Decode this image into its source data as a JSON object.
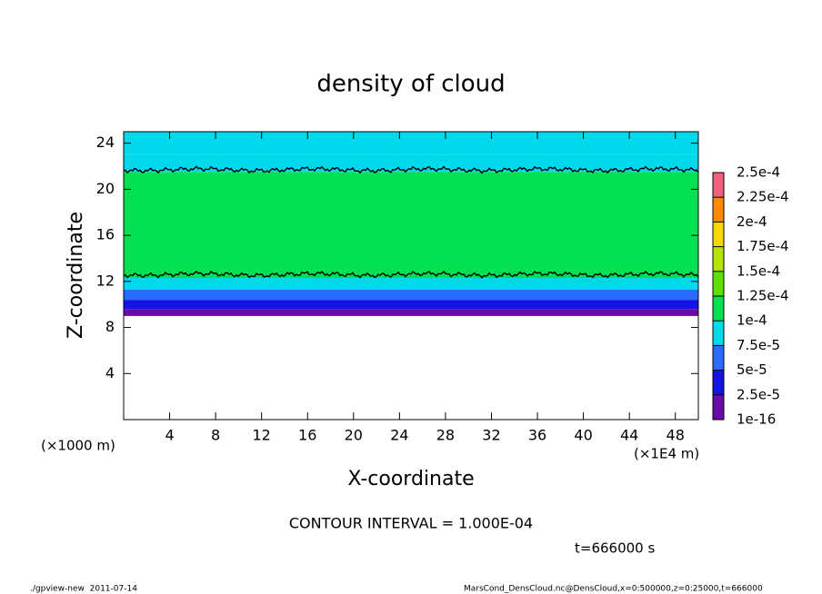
{
  "chart_data": {
    "type": "layered-contour",
    "title": "density of cloud",
    "x_label": "X-coordinate",
    "y_label": "Z-coordinate",
    "x_unit": "(×1E4 m)",
    "y_unit": "(×1000 m)",
    "contour_note": "CONTOUR INTERVAL = 1.000E-04",
    "time_note": "t=666000 s",
    "footer_left": "./gpview-new  2011-07-14",
    "footer_right": "MarsCond_DensCloud.nc@DensCloud,x=0:500000,z=0:25000,t=666000",
    "xlim": [
      0,
      50
    ],
    "ylim": [
      0,
      25
    ],
    "xticks": [
      4,
      8,
      12,
      16,
      20,
      24,
      28,
      32,
      36,
      40,
      44,
      48
    ],
    "yticks": [
      4,
      8,
      12,
      16,
      20,
      24
    ],
    "layers": [
      {
        "zlim": [
          0,
          9
        ],
        "value": 0
      },
      {
        "zlim": [
          9,
          9.6
        ],
        "value": 1e-05
      },
      {
        "zlim": [
          9.6,
          10.4
        ],
        "value": 3.5e-05
      },
      {
        "zlim": [
          10.4,
          11.3
        ],
        "value": 6e-05
      },
      {
        "zlim": [
          11.3,
          12.3
        ],
        "value": 8.5e-05
      },
      {
        "zlim": [
          12.3,
          21.5
        ],
        "value": 0.00011
      },
      {
        "zlim": [
          21.5,
          23
        ],
        "value": 9e-05
      },
      {
        "zlim": [
          23,
          25
        ],
        "value": 8e-05
      }
    ],
    "contours": [
      12.6,
      21.7
    ],
    "colorbar": {
      "levels": [
        {
          "value": 1e-16,
          "label": "1e-16"
        },
        {
          "value": 2.5e-05,
          "label": "2.5e-5"
        },
        {
          "value": 5e-05,
          "label": "5e-5"
        },
        {
          "value": 7.5e-05,
          "label": "7.5e-5"
        },
        {
          "value": 0.0001,
          "label": "1e-4"
        },
        {
          "value": 0.000125,
          "label": "1.25e-4"
        },
        {
          "value": 0.00015,
          "label": "1.5e-4"
        },
        {
          "value": 0.000175,
          "label": "1.75e-4"
        },
        {
          "value": 0.0002,
          "label": "2e-4"
        },
        {
          "value": 0.000225,
          "label": "2.25e-4"
        },
        {
          "value": 0.00025,
          "label": "2.5e-4"
        }
      ],
      "colors": [
        "#6a0aa8",
        "#1414e6",
        "#2a6cff",
        "#00d8ec",
        "#00e050",
        "#5ee000",
        "#b4e400",
        "#f6d800",
        "#ff8a00",
        "#f0607a"
      ]
    }
  }
}
